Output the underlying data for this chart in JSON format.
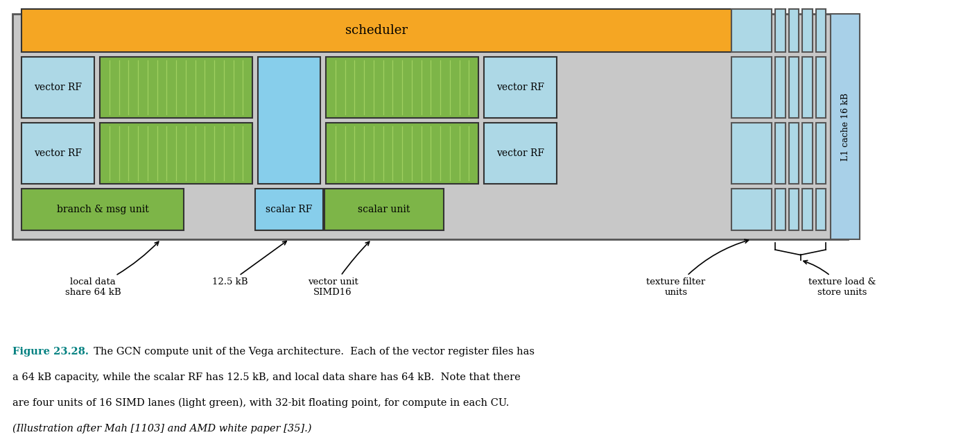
{
  "fig_width": 13.76,
  "fig_height": 6.3,
  "colors": {
    "orange": "#F5A623",
    "light_blue": "#ADD8E6",
    "light_blue2": "#87CEEB",
    "light_green": "#7DB548",
    "gray_bg": "#C8C8C8",
    "white": "#FFFFFF",
    "dark_border": "#333333",
    "l1_blue": "#A8D0E8",
    "texture_blue": "#ADD8E6",
    "green_line": "#a0d060"
  },
  "caption_bold": "Figure 23.28.",
  "caption_rest": "  The GCN compute unit of the Vega architecture.  Each of the vector register files has a 64 kB capacity, while the scalar RF has 12.5 kB, and local data share has 64 kB.  Note that there are four units of 16 SIMD lanes (light green), with 32-bit floating point, for compute in each CU.",
  "caption_italic": "(Illustration after Mah [1103] and AMD white paper [35].)"
}
